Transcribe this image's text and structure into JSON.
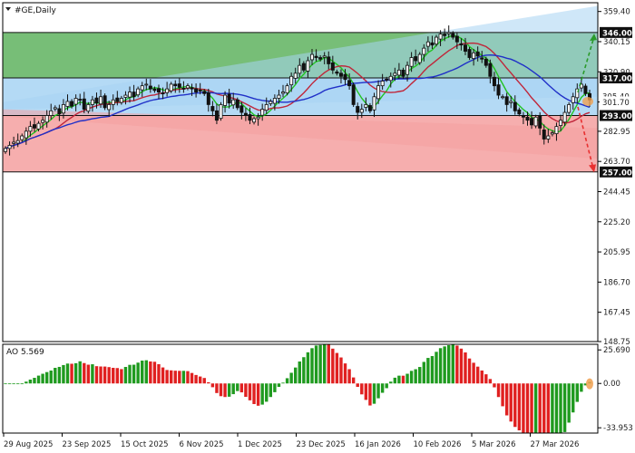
{
  "window": {
    "symbol_label": "#GE,Daily"
  },
  "chart_data": [
    {
      "type": "candlestick",
      "title": "#GE,Daily",
      "ylim": [
        148.75,
        365.0
      ],
      "y_ticks": [
        "359.40",
        "340.15",
        "320.90",
        "301.65",
        "282.95",
        "263.70",
        "244.45",
        "225.20",
        "205.95",
        "186.70",
        "167.45",
        "148.75"
      ],
      "x_ticks": [
        "29 Aug 2025",
        "23 Sep 2025",
        "15 Oct 2025",
        "6 Nov 2025",
        "1 Dec 2025",
        "23 Dec 2025",
        "16 Jan 2026",
        "10 Feb 2026",
        "5 Mar 2026",
        "27 Mar 2026"
      ],
      "price_levels": [
        {
          "value": 346.0,
          "label": "346.00",
          "style": "boxed"
        },
        {
          "value": 317.0,
          "label": "317.00",
          "style": "boxed"
        },
        {
          "value": 305.4,
          "label": "305.40",
          "style": "light"
        },
        {
          "value": 301.7,
          "label": "301.70",
          "style": "light"
        },
        {
          "value": 293.0,
          "label": "293.00",
          "style": "boxed"
        },
        {
          "value": 257.0,
          "label": "257.00",
          "style": "boxed"
        }
      ],
      "zones": [
        {
          "name": "upper-zone",
          "from": 317.0,
          "to": 346.0,
          "color": "#5fb35f"
        },
        {
          "name": "middle-zone",
          "from": 293.0,
          "to": 317.0,
          "color": "#a7d3f3"
        },
        {
          "name": "lower-zone",
          "from": 257.0,
          "to": 293.0,
          "color": "#f4a0a0"
        }
      ],
      "channel": {
        "upper_start": 301.5,
        "upper_end": 363.0,
        "lower_start": 292.5,
        "lower_end": 265.5,
        "colors": {
          "upper": "#a7d3f3",
          "lower": "#f4a0a0"
        }
      },
      "forecast": {
        "up_target": 343.5,
        "down_target": 259.0,
        "up_color": "#2a9a2a",
        "down_color": "#e83030"
      },
      "closes": [
        272,
        274,
        276,
        277,
        280,
        283,
        286,
        285,
        288,
        290,
        293,
        296,
        298,
        294,
        300,
        302,
        299,
        304,
        303,
        297,
        300,
        303,
        301,
        305,
        298,
        300,
        303,
        302,
        304,
        306,
        308,
        305,
        310,
        312,
        313,
        310,
        309,
        308,
        307,
        310,
        313,
        312,
        311,
        310,
        312,
        310,
        308,
        309,
        307,
        300,
        296,
        290,
        300,
        306,
        301,
        303,
        298,
        295,
        293,
        290,
        291,
        292,
        297,
        300,
        302,
        304,
        306,
        308,
        312,
        318,
        320,
        325,
        322,
        328,
        332,
        330,
        329,
        331,
        326,
        322,
        320,
        318,
        316,
        312,
        300,
        295,
        297,
        300,
        296,
        305,
        312,
        315,
        316,
        318,
        320,
        322,
        318,
        325,
        330,
        328,
        332,
        336,
        340,
        338,
        343,
        345,
        344,
        346,
        343,
        340,
        338,
        334,
        330,
        333,
        331,
        329,
        325,
        318,
        312,
        306,
        305,
        300,
        302,
        296,
        294,
        292,
        290,
        287,
        292,
        285,
        278,
        280,
        282,
        286,
        290,
        295,
        300,
        305,
        310,
        313,
        307,
        303
      ],
      "lines": [
        {
          "name": "fast-ma",
          "period": 5,
          "color": "#22c322"
        },
        {
          "name": "medium-ma",
          "period": 13,
          "color": "#c0263a"
        },
        {
          "name": "slow-ma",
          "period": 26,
          "color": "#2030c8"
        }
      ]
    },
    {
      "type": "bar",
      "title": "AO 5.569",
      "indicator_label": "AO 5.569",
      "ylim": [
        -38,
        30
      ],
      "y_ticks": [
        "25.690",
        "0.00",
        "-33.953"
      ],
      "colors": {
        "up": "#1f9a1f",
        "down": "#e02020",
        "highlight": "#f0a050"
      }
    }
  ]
}
